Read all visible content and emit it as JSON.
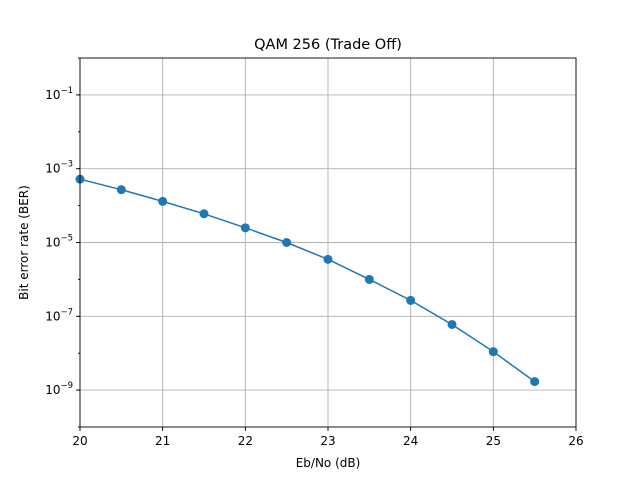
{
  "chart_data": {
    "type": "line",
    "title": "QAM 256 (Trade Off)",
    "xlabel": "Eb/No (dB)",
    "ylabel": "Bit error rate (BER)",
    "xlim": [
      20,
      26
    ],
    "ylim": [
      1e-10,
      1
    ],
    "yscale": "log",
    "grid": true,
    "xticks": [
      20,
      21,
      22,
      23,
      24,
      25,
      26
    ],
    "xtick_labels": [
      "20",
      "21",
      "22",
      "23",
      "24",
      "25",
      "26"
    ],
    "yticks": [
      1e-09,
      1e-07,
      1e-05,
      0.001,
      0.1
    ],
    "ytick_labels": [
      {
        "base": "10",
        "exp": "−9"
      },
      {
        "base": "10",
        "exp": "−7"
      },
      {
        "base": "10",
        "exp": "−5"
      },
      {
        "base": "10",
        "exp": "−3"
      },
      {
        "base": "10",
        "exp": "−1"
      }
    ],
    "series": [
      {
        "color": "#1f77b4",
        "marker": "circle",
        "x": [
          20,
          20.5,
          21,
          21.5,
          22,
          22.5,
          23,
          23.5,
          24,
          24.5,
          25,
          25.5
        ],
        "y": [
          0.00052,
          0.00027,
          0.00013,
          6e-05,
          2.5e-05,
          1e-05,
          3.5e-06,
          1e-06,
          2.7e-07,
          6e-08,
          1.1e-08,
          1.7e-09
        ]
      }
    ]
  }
}
